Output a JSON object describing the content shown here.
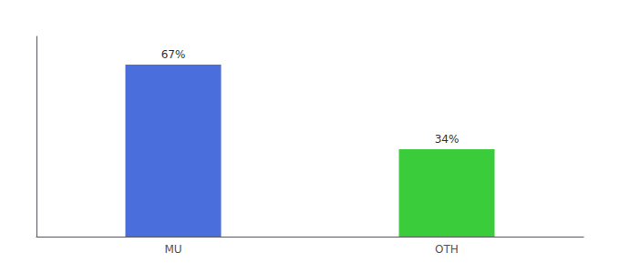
{
  "chart_data": {
    "type": "bar",
    "categories": [
      "MU",
      "OTH"
    ],
    "values": [
      67,
      34
    ],
    "value_labels": [
      "67%",
      "34%"
    ],
    "colors": [
      "#4a6fdc",
      "#3acc3a"
    ],
    "ylim": [
      0,
      78
    ],
    "data_labels": true,
    "tick_labels": "x",
    "grid": false
  }
}
